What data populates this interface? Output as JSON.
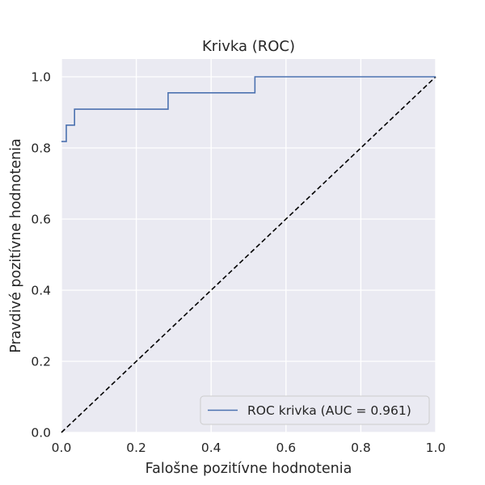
{
  "chart_data": {
    "type": "line",
    "title": "Krivka (ROC)",
    "xlabel": "Falošne pozitívne hodnotenia",
    "ylabel": "Pravdivé pozitívne hodnotenia",
    "xlim": [
      0.0,
      1.0
    ],
    "ylim": [
      0.0,
      1.05
    ],
    "x_ticks": [
      "0.0",
      "0.2",
      "0.4",
      "0.6",
      "0.8",
      "1.0"
    ],
    "y_ticks": [
      "0.0",
      "0.2",
      "0.4",
      "0.6",
      "0.8",
      "1.0"
    ],
    "grid": true,
    "legend_position": "lower-right",
    "series": [
      {
        "name": "ROC krivka (AUC = 0.961)",
        "color": "#4c72b0",
        "style": "solid",
        "x": [
          0.0,
          0.013,
          0.013,
          0.035,
          0.035,
          0.285,
          0.285,
          0.517,
          0.517,
          1.0
        ],
        "y": [
          0.818,
          0.818,
          0.864,
          0.864,
          0.909,
          0.909,
          0.955,
          0.955,
          1.0,
          1.0
        ]
      },
      {
        "color": "#000000",
        "style": "dashed",
        "x": [
          0.0,
          1.0
        ],
        "y": [
          0.0,
          1.0
        ]
      }
    ],
    "colors": {
      "plot_background": "#eaeaf2",
      "grid": "#ffffff"
    }
  }
}
